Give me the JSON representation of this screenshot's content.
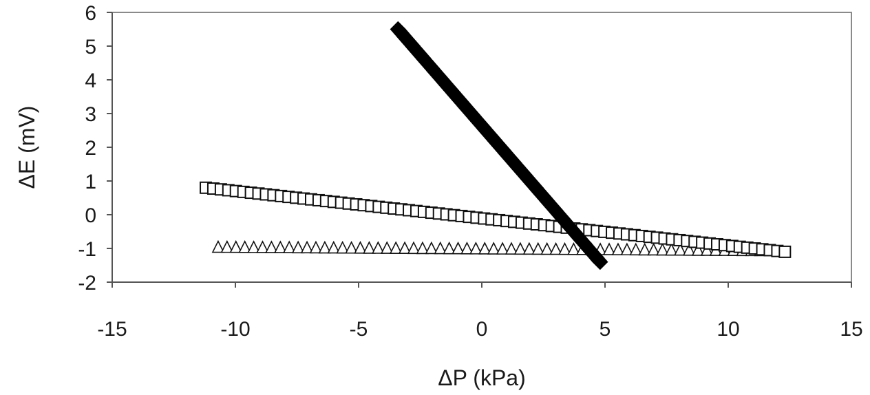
{
  "chart_data": {
    "type": "scatter",
    "title": "",
    "xlabel": "ΔP (kPa)",
    "ylabel": "ΔE (mV)",
    "xlim": [
      -15,
      15
    ],
    "ylim": [
      -2,
      6
    ],
    "x_ticks": [
      -15,
      -10,
      -5,
      0,
      5,
      10,
      15
    ],
    "y_ticks": [
      -2,
      -1,
      0,
      1,
      2,
      3,
      4,
      5,
      6
    ],
    "x_tick_labels": [
      "-15",
      "-10",
      "-5",
      "0",
      "5",
      "10",
      "15"
    ],
    "y_tick_labels": [
      "-2",
      "-1",
      "0",
      "1",
      "2",
      "3",
      "4",
      "5",
      "6"
    ],
    "grid": false,
    "legend": "none",
    "series": [
      {
        "marker": "diamond",
        "fill": "#000000",
        "x_start": -3.4,
        "x_end": 4.8,
        "y_start": 5.5,
        "y_end": -1.4
      },
      {
        "marker": "square",
        "fill": "#ffffff",
        "x_start": -11.2,
        "x_end": 12.3,
        "y_start": 0.8,
        "y_end": -1.1
      },
      {
        "marker": "triangle",
        "fill": "#ffffff",
        "x_start": -10.7,
        "x_end": 11.3,
        "y_start": -0.95,
        "y_end": -1.05
      }
    ]
  }
}
